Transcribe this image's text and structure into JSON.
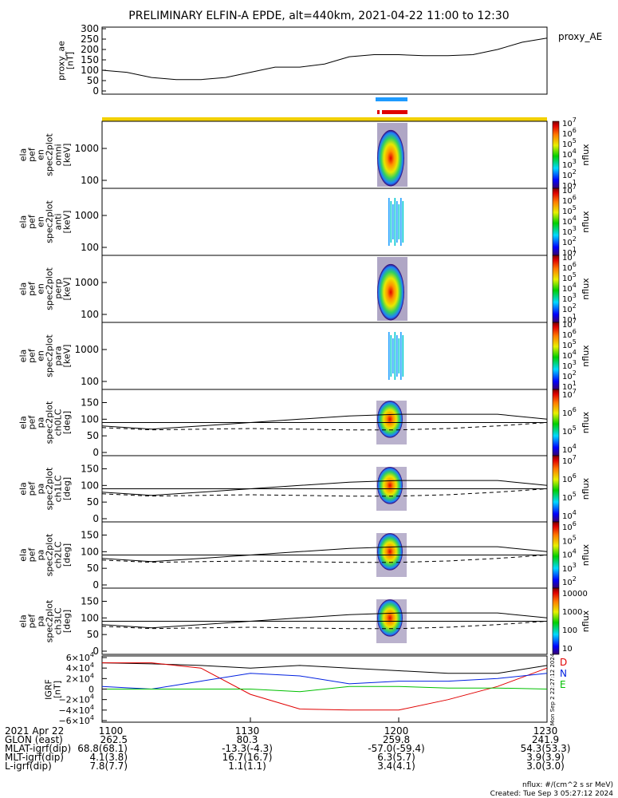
{
  "title": "PRELIMINARY ELFIN-A EPDE, alt=440km, 2021-04-22 11:00 to 12:30",
  "colors": {
    "yellow_bar": "#f2d000",
    "blue_bar": "#1e9bff",
    "red_bar": "#e00000",
    "grf_D": "#e00000",
    "grf_N": "#0020e0",
    "grf_E": "#00c000"
  },
  "proxy_ae": {
    "ylabel": [
      "proxy_ae",
      "[nT]"
    ],
    "legend": "proxy_AE",
    "ticks": [
      "0",
      "50",
      "100",
      "150",
      "200",
      "250",
      "300"
    ]
  },
  "spec_panels": [
    {
      "label": [
        "ela",
        "pef",
        "en",
        "spec2plot",
        "omni",
        "[keV]"
      ],
      "ticks": [
        "100",
        "1000"
      ],
      "cbar_label": "nflux",
      "cbar_ticks": [
        "10",
        "10",
        "10",
        "10",
        "10",
        "10",
        "10"
      ],
      "cbar_exp": [
        "1",
        "2",
        "3",
        "4",
        "5",
        "6",
        "7"
      ]
    },
    {
      "label": [
        "ela",
        "pef",
        "en",
        "spec2plot",
        "anti",
        "[keV]"
      ],
      "ticks": [
        "100",
        "1000"
      ],
      "cbar_label": "nflux",
      "cbar_ticks": [
        "10",
        "10",
        "10",
        "10",
        "10",
        "10",
        "10"
      ],
      "cbar_exp": [
        "1",
        "2",
        "3",
        "4",
        "5",
        "6",
        "7"
      ]
    },
    {
      "label": [
        "ela",
        "pef",
        "en",
        "spec2plot",
        "perp",
        "[keV]"
      ],
      "ticks": [
        "100",
        "1000"
      ],
      "cbar_label": "nflux",
      "cbar_ticks": [
        "10",
        "10",
        "10",
        "10",
        "10",
        "10",
        "10"
      ],
      "cbar_exp": [
        "1",
        "2",
        "3",
        "4",
        "5",
        "6",
        "7"
      ]
    },
    {
      "label": [
        "ela",
        "pef",
        "en",
        "spec2plot",
        "para",
        "[keV]"
      ],
      "ticks": [
        "100",
        "1000"
      ],
      "cbar_label": "nflux",
      "cbar_ticks": [
        "10",
        "10",
        "10",
        "10",
        "10",
        "10",
        "10"
      ],
      "cbar_exp": [
        "1",
        "2",
        "3",
        "4",
        "5",
        "6",
        "7"
      ]
    }
  ],
  "pa_panels": [
    {
      "label": [
        "ela",
        "pef",
        "pa",
        "spec2plot",
        "ch0LC",
        "[deg]"
      ],
      "ticks": [
        "0",
        "50",
        "100",
        "150"
      ],
      "cbar_label": "nflux",
      "cbar_ticks": [
        "10",
        "10",
        "10",
        "10"
      ],
      "cbar_exp": [
        "4",
        "5",
        "6",
        "7"
      ]
    },
    {
      "label": [
        "ela",
        "pef",
        "pa",
        "spec2plot",
        "ch1LC",
        "[deg]"
      ],
      "ticks": [
        "0",
        "50",
        "100",
        "150"
      ],
      "cbar_label": "nflux",
      "cbar_ticks": [
        "10",
        "10",
        "10",
        "10"
      ],
      "cbar_exp": [
        "4",
        "5",
        "6",
        "7"
      ]
    },
    {
      "label": [
        "ela",
        "pef",
        "pa",
        "spec2plot",
        "ch2LC",
        "[deg]"
      ],
      "ticks": [
        "0",
        "50",
        "100",
        "150"
      ],
      "cbar_label": "nflux",
      "cbar_ticks": [
        "10",
        "10",
        "10",
        "10",
        "10"
      ],
      "cbar_exp": [
        "2",
        "3",
        "4",
        "5",
        "6"
      ]
    },
    {
      "label": [
        "ela",
        "pef",
        "pa",
        "spec2plot",
        "ch3LC",
        "[deg]"
      ],
      "ticks": [
        "0",
        "50",
        "100",
        "150"
      ],
      "cbar_label": "nflux",
      "cbar_ticks": [
        "10",
        "100",
        "1000",
        "10000"
      ],
      "cbar_exp": [
        "",
        "",
        "",
        ""
      ]
    }
  ],
  "grf": {
    "ylabel": [
      "IGRF",
      "[nT]"
    ],
    "ticks": [
      "6×10",
      "4×10",
      "2×10",
      "0",
      "−2×10",
      "−4×10",
      "−6×10"
    ],
    "tick_exp": [
      "4",
      "4",
      "4",
      "",
      "4",
      "4",
      "4"
    ],
    "legend": [
      "D",
      "N",
      "E"
    ]
  },
  "side_stamp": "Mon Sep  2 22:27:12 2024",
  "footer": {
    "row_labels": [
      "2021 Apr 22",
      "GLON (east)",
      "MLAT-igrf(dip)",
      "MLT-igrf(dip)",
      "L-igrf(dip)"
    ],
    "time_ticks": [
      "1100",
      "1130",
      "1200",
      "1230"
    ],
    "cols": [
      [
        "262.5",
        "68.8(68.1)",
        "4.1(3.8)",
        "7.8(7.7)"
      ],
      [
        "80.3",
        "-13.3(-4.3)",
        "16.7(16.7)",
        "1.1(1.1)"
      ],
      [
        "259.8",
        "-57.0(-59.4)",
        "6.3(5.7)",
        "3.4(4.1)"
      ],
      [
        "241.9",
        "54.3(53.3)",
        "3.9(3.9)",
        "3.0(3.0)"
      ]
    ],
    "units_note": "nflux: #/(cm^2 s sr MeV)",
    "created": "Created: Tue Sep  3 05:27:12 2024"
  },
  "chart_data": {
    "type": "line",
    "x_range": [
      "11:00",
      "12:30"
    ],
    "proxy_ae": {
      "time_min": [
        0,
        5,
        10,
        15,
        20,
        25,
        30,
        35,
        40,
        45,
        50,
        55,
        60,
        65,
        70,
        75,
        80,
        85,
        90
      ],
      "values": [
        100,
        90,
        65,
        55,
        55,
        65,
        90,
        115,
        115,
        130,
        165,
        175,
        175,
        170,
        170,
        175,
        200,
        235,
        255
      ],
      "ylim": [
        0,
        300
      ]
    },
    "pa_lines": {
      "time_min": [
        0,
        10,
        20,
        30,
        40,
        50,
        60,
        70,
        80,
        90
      ],
      "upper_solid": [
        80,
        70,
        80,
        90,
        100,
        110,
        115,
        115,
        115,
        100
      ],
      "flat_solid": [
        90,
        90,
        90,
        90,
        90,
        90,
        90,
        90,
        90,
        90
      ],
      "dashed": [
        75,
        68,
        70,
        72,
        70,
        68,
        68,
        72,
        80,
        90
      ],
      "ylim": [
        0,
        180
      ]
    },
    "grf": {
      "time_min": [
        0,
        10,
        20,
        30,
        40,
        50,
        60,
        70,
        80,
        90
      ],
      "D": [
        50000,
        50000,
        40000,
        -10000,
        -38000,
        -40000,
        -40000,
        -20000,
        5000,
        40000
      ],
      "N": [
        5000,
        0,
        15000,
        30000,
        25000,
        10000,
        15000,
        15000,
        20000,
        30000
      ],
      "E": [
        0,
        0,
        0,
        0,
        -5000,
        5000,
        5000,
        2000,
        2000,
        0
      ],
      "black": [
        50000,
        48000,
        45000,
        40000,
        45000,
        40000,
        35000,
        30000,
        30000,
        45000
      ],
      "ylim": [
        -60000,
        60000
      ]
    }
  }
}
